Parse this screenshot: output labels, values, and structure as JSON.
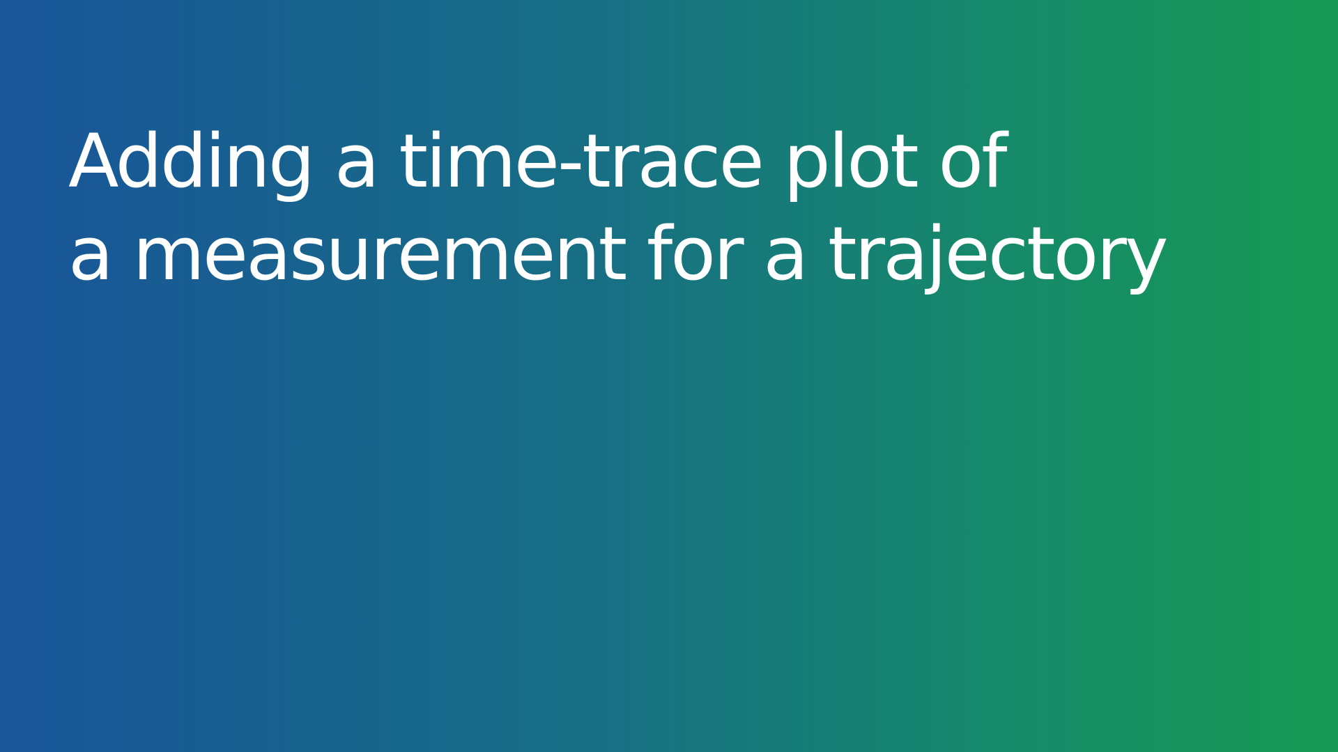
{
  "slide": {
    "title_lines": [
      "Adding a time-trace plot of",
      "a measurement for a trajectory"
    ]
  },
  "colors": {
    "gradient_start": "#185599",
    "gradient_end": "#169953",
    "text": "#ffffff"
  }
}
